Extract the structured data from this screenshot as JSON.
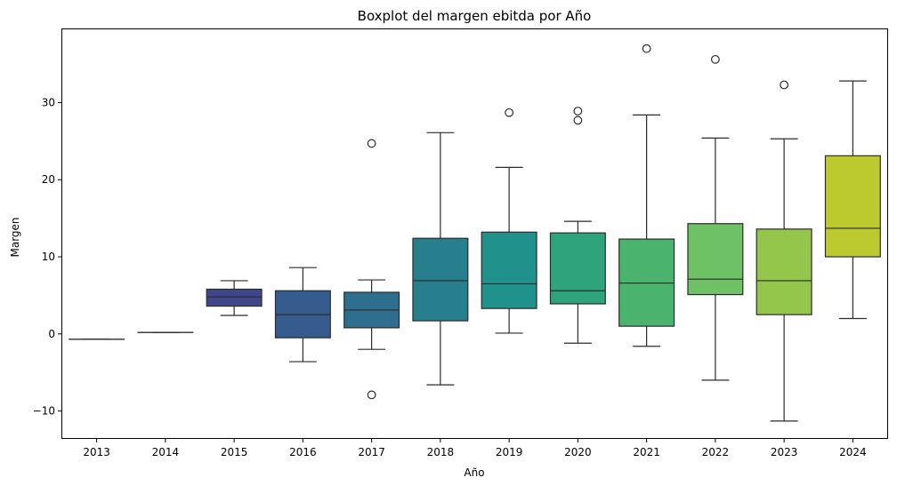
{
  "chart_data": {
    "type": "box",
    "title": "Boxplot del margen ebitda por Año",
    "xlabel": "Año",
    "ylabel": "Margen",
    "ylim": [
      -13.5,
      39.5
    ],
    "yticks": [
      -10,
      0,
      10,
      20,
      30
    ],
    "grid": false,
    "legend": "none",
    "categories": [
      "2013",
      "2014",
      "2015",
      "2016",
      "2017",
      "2018",
      "2019",
      "2020",
      "2021",
      "2022",
      "2023",
      "2024"
    ],
    "boxes": [
      {
        "category": "2013",
        "whisker_low": -0.7,
        "q1": -0.7,
        "median": -0.7,
        "q3": -0.7,
        "whisker_high": -0.7,
        "outliers": [],
        "color": "#440154"
      },
      {
        "category": "2014",
        "whisker_low": 0.2,
        "q1": 0.2,
        "median": 0.2,
        "q3": 0.2,
        "whisker_high": 0.2,
        "outliers": [],
        "color": "#482475"
      },
      {
        "category": "2015",
        "whisker_low": 2.4,
        "q1": 3.6,
        "median": 4.8,
        "q3": 5.8,
        "whisker_high": 6.9,
        "outliers": [],
        "color": "#414487"
      },
      {
        "category": "2016",
        "whisker_low": -3.6,
        "q1": -0.5,
        "median": 2.5,
        "q3": 5.6,
        "whisker_high": 8.6,
        "outliers": [],
        "color": "#355f8d"
      },
      {
        "category": "2017",
        "whisker_low": -2.0,
        "q1": 0.8,
        "median": 3.1,
        "q3": 5.4,
        "whisker_high": 7.0,
        "outliers": [
          24.7,
          -7.9
        ],
        "color": "#2a788e"
      },
      {
        "category": "2018",
        "whisker_low": -6.6,
        "q1": 1.7,
        "median": 6.9,
        "q3": 12.4,
        "whisker_high": 26.1,
        "outliers": [],
        "color": "#21918c"
      },
      {
        "category": "2019",
        "whisker_low": 0.1,
        "q1": 3.3,
        "median": 6.5,
        "q3": 13.2,
        "whisker_high": 21.6,
        "outliers": [
          28.7
        ],
        "color": "#22a884"
      },
      {
        "category": "2020",
        "whisker_low": -1.2,
        "q1": 3.9,
        "median": 5.6,
        "q3": 13.1,
        "whisker_high": 14.6,
        "outliers": [
          28.9,
          27.7
        ],
        "color": "#44bf70"
      },
      {
        "category": "2021",
        "whisker_low": -1.6,
        "q1": 1.0,
        "median": 6.6,
        "q3": 12.3,
        "whisker_high": 28.4,
        "outliers": [
          37.0
        ],
        "color": "#7ad151"
      },
      {
        "category": "2022",
        "whisker_low": -6.0,
        "q1": 5.1,
        "median": 7.1,
        "q3": 14.3,
        "whisker_high": 25.4,
        "outliers": [
          35.6
        ],
        "color": "#bddf26"
      },
      {
        "category": "2023",
        "whisker_low": -11.3,
        "q1": 2.5,
        "median": 6.9,
        "q3": 13.6,
        "whisker_high": 25.3,
        "outliers": [
          32.3
        ],
        "color": "#fde725"
      },
      {
        "category": "2024",
        "whisker_low": 2.0,
        "q1": 10.0,
        "median": 13.7,
        "q3": 23.1,
        "whisker_high": 32.8,
        "outliers": [],
        "color": "#c8e020"
      }
    ]
  },
  "colors": {
    "2013": "#3b0f70",
    "2014": "#472d7b",
    "2015": "#3f4788",
    "2016": "#365c8d",
    "2017": "#2e6e8e",
    "2018": "#277f8e",
    "2019": "#21918c",
    "2020": "#2ea37c",
    "2021": "#4ab36d",
    "2022": "#6ec165",
    "2023": "#93c64a",
    "2024": "#bdca2f"
  }
}
